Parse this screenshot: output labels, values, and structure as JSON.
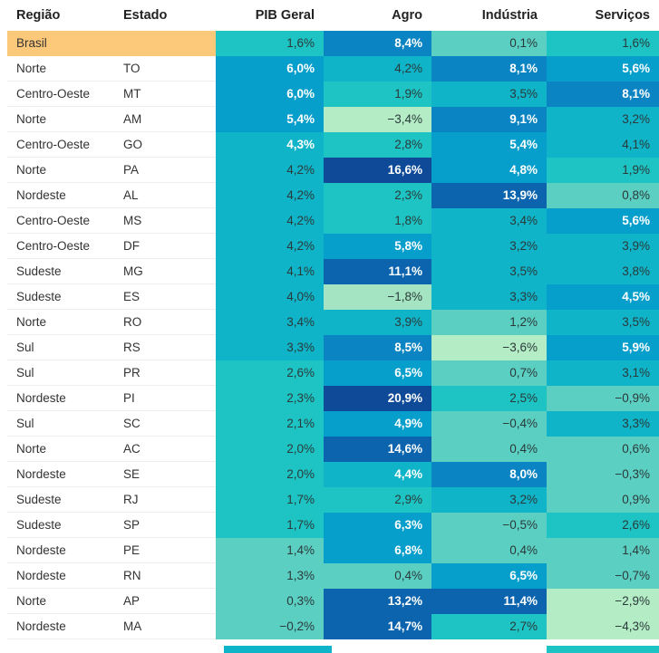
{
  "columns": [
    "Região",
    "Estado",
    "PIB Geral",
    "Agro",
    "Indústria",
    "Serviços"
  ],
  "chart_data": {
    "type": "table",
    "columns": [
      "Região",
      "Estado",
      "PIB Geral",
      "Agro",
      "Indústria",
      "Serviços"
    ],
    "rows": [
      {
        "regiao": "Brasil",
        "estado": "",
        "pib": 1.6,
        "agro": 8.4,
        "industria": 0.1,
        "servicos": 1.6
      },
      {
        "regiao": "Norte",
        "estado": "TO",
        "pib": 6.0,
        "agro": 4.2,
        "industria": 8.1,
        "servicos": 5.6
      },
      {
        "regiao": "Centro-Oeste",
        "estado": "MT",
        "pib": 6.0,
        "agro": 1.9,
        "industria": 3.5,
        "servicos": 8.1
      },
      {
        "regiao": "Norte",
        "estado": "AM",
        "pib": 5.4,
        "agro": -3.4,
        "industria": 9.1,
        "servicos": 3.2
      },
      {
        "regiao": "Centro-Oeste",
        "estado": "GO",
        "pib": 4.3,
        "agro": 2.8,
        "industria": 5.4,
        "servicos": 4.1
      },
      {
        "regiao": "Norte",
        "estado": "PA",
        "pib": 4.2,
        "agro": 16.6,
        "industria": 4.8,
        "servicos": 1.9
      },
      {
        "regiao": "Nordeste",
        "estado": "AL",
        "pib": 4.2,
        "agro": 2.3,
        "industria": 13.9,
        "servicos": 0.8
      },
      {
        "regiao": "Centro-Oeste",
        "estado": "MS",
        "pib": 4.2,
        "agro": 1.8,
        "industria": 3.4,
        "servicos": 5.6
      },
      {
        "regiao": "Centro-Oeste",
        "estado": "DF",
        "pib": 4.2,
        "agro": 5.8,
        "industria": 3.2,
        "servicos": 3.9
      },
      {
        "regiao": "Sudeste",
        "estado": "MG",
        "pib": 4.1,
        "agro": 11.1,
        "industria": 3.5,
        "servicos": 3.8
      },
      {
        "regiao": "Sudeste",
        "estado": "ES",
        "pib": 4.0,
        "agro": -1.8,
        "industria": 3.3,
        "servicos": 4.5
      },
      {
        "regiao": "Norte",
        "estado": "RO",
        "pib": 3.4,
        "agro": 3.9,
        "industria": 1.2,
        "servicos": 3.5
      },
      {
        "regiao": "Sul",
        "estado": "RS",
        "pib": 3.3,
        "agro": 8.5,
        "industria": -3.6,
        "servicos": 5.9
      },
      {
        "regiao": "Sul",
        "estado": "PR",
        "pib": 2.6,
        "agro": 6.5,
        "industria": 0.7,
        "servicos": 3.1
      },
      {
        "regiao": "Nordeste",
        "estado": "PI",
        "pib": 2.3,
        "agro": 20.9,
        "industria": 2.5,
        "servicos": -0.9
      },
      {
        "regiao": "Sul",
        "estado": "SC",
        "pib": 2.1,
        "agro": 4.9,
        "industria": -0.4,
        "servicos": 3.3
      },
      {
        "regiao": "Norte",
        "estado": "AC",
        "pib": 2.0,
        "agro": 14.6,
        "industria": 0.4,
        "servicos": 0.6
      },
      {
        "regiao": "Nordeste",
        "estado": "SE",
        "pib": 2.0,
        "agro": 4.4,
        "industria": 8.0,
        "servicos": -0.3
      },
      {
        "regiao": "Sudeste",
        "estado": "RJ",
        "pib": 1.7,
        "agro": 2.9,
        "industria": 3.2,
        "servicos": 0.9
      },
      {
        "regiao": "Sudeste",
        "estado": "SP",
        "pib": 1.7,
        "agro": 6.3,
        "industria": -0.5,
        "servicos": 2.6
      },
      {
        "regiao": "Nordeste",
        "estado": "PE",
        "pib": 1.4,
        "agro": 6.8,
        "industria": 0.4,
        "servicos": 1.4
      },
      {
        "regiao": "Nordeste",
        "estado": "RN",
        "pib": 1.3,
        "agro": 0.4,
        "industria": 6.5,
        "servicos": -0.7
      },
      {
        "regiao": "Norte",
        "estado": "AP",
        "pib": 0.3,
        "agro": 13.2,
        "industria": 11.4,
        "servicos": -2.9
      },
      {
        "regiao": "Nordeste",
        "estado": "MA",
        "pib": -0.2,
        "agro": 14.7,
        "industria": 2.7,
        "servicos": -4.3
      }
    ],
    "highlight_row": 0,
    "highlight_color": "#fcc97a",
    "color_scale": [
      "#b4ecc6",
      "#a4e4c2",
      "#5ccfc3",
      "#1ec4c4",
      "#0fb4c8",
      "#069ecb",
      "#0a84c2",
      "#0b64ad",
      "#0e4a97"
    ]
  }
}
